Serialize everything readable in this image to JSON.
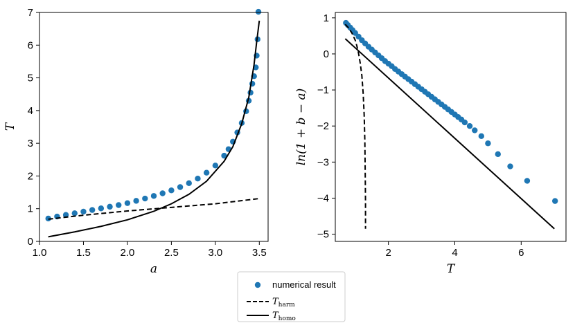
{
  "chart_data": [
    {
      "type": "scatter",
      "xlabel": "a",
      "ylabel": "T",
      "xlim": [
        1.0,
        3.6
      ],
      "ylim": [
        0,
        7
      ],
      "xticks": [
        1.0,
        1.5,
        2.0,
        2.5,
        3.0,
        3.5
      ],
      "xtick_labels": [
        "1.0",
        "1.5",
        "2.0",
        "2.5",
        "3.0",
        "3.5"
      ],
      "yticks": [
        0,
        1,
        2,
        3,
        4,
        5,
        6,
        7
      ],
      "ytick_labels": [
        "0",
        "1",
        "2",
        "3",
        "4",
        "5",
        "6",
        "7"
      ],
      "series": [
        {
          "name": "numerical result",
          "style": "scatter",
          "color": "#1f77b4",
          "points": [
            [
              1.1,
              0.7
            ],
            [
              1.2,
              0.76
            ],
            [
              1.3,
              0.81
            ],
            [
              1.4,
              0.86
            ],
            [
              1.5,
              0.91
            ],
            [
              1.6,
              0.96
            ],
            [
              1.7,
              1.01
            ],
            [
              1.8,
              1.06
            ],
            [
              1.9,
              1.11
            ],
            [
              2.0,
              1.17
            ],
            [
              2.1,
              1.24
            ],
            [
              2.2,
              1.31
            ],
            [
              2.3,
              1.39
            ],
            [
              2.4,
              1.47
            ],
            [
              2.5,
              1.56
            ],
            [
              2.6,
              1.66
            ],
            [
              2.7,
              1.78
            ],
            [
              2.8,
              1.92
            ],
            [
              2.9,
              2.1
            ],
            [
              3.0,
              2.32
            ],
            [
              3.1,
              2.62
            ],
            [
              3.15,
              2.82
            ],
            [
              3.2,
              3.05
            ],
            [
              3.25,
              3.33
            ],
            [
              3.3,
              3.62
            ],
            [
              3.35,
              3.98
            ],
            [
              3.38,
              4.3
            ],
            [
              3.4,
              4.55
            ],
            [
              3.42,
              4.82
            ],
            [
              3.44,
              5.05
            ],
            [
              3.46,
              5.32
            ],
            [
              3.47,
              5.68
            ],
            [
              3.48,
              6.18
            ],
            [
              3.49,
              7.02
            ]
          ]
        },
        {
          "name": "T_harm",
          "style": "dashed",
          "color": "#000000",
          "points": [
            [
              1.1,
              0.68
            ],
            [
              1.5,
              0.8
            ],
            [
              2.0,
              0.93
            ],
            [
              2.5,
              1.04
            ],
            [
              3.0,
              1.15
            ],
            [
              3.5,
              1.31
            ]
          ]
        },
        {
          "name": "T_homo",
          "style": "solid",
          "color": "#000000",
          "points": [
            [
              1.1,
              0.14
            ],
            [
              1.4,
              0.29
            ],
            [
              1.7,
              0.46
            ],
            [
              2.0,
              0.66
            ],
            [
              2.3,
              0.92
            ],
            [
              2.5,
              1.15
            ],
            [
              2.7,
              1.44
            ],
            [
              2.9,
              1.84
            ],
            [
              3.1,
              2.45
            ],
            [
              3.2,
              2.9
            ],
            [
              3.3,
              3.6
            ],
            [
              3.38,
              4.4
            ],
            [
              3.44,
              5.4
            ],
            [
              3.47,
              6.1
            ],
            [
              3.5,
              6.75
            ]
          ]
        }
      ]
    },
    {
      "type": "scatter",
      "xlabel": "T",
      "ylabel": "ln(1 + b − a)",
      "xlim": [
        0.4,
        7.35
      ],
      "ylim": [
        -5.2,
        1.15
      ],
      "xticks": [
        2,
        4,
        6
      ],
      "xtick_labels": [
        "2",
        "4",
        "6"
      ],
      "yticks": [
        1,
        0,
        -1,
        -2,
        -3,
        -4,
        -5
      ],
      "ytick_labels": [
        "1",
        "0",
        "−1",
        "−2",
        "−3",
        "−4",
        "−5"
      ],
      "series": [
        {
          "name": "numerical result",
          "style": "scatter",
          "color": "#1f77b4",
          "points": [
            [
              0.72,
              0.86
            ],
            [
              0.78,
              0.8
            ],
            [
              0.85,
              0.73
            ],
            [
              0.92,
              0.66
            ],
            [
              1.0,
              0.58
            ],
            [
              1.1,
              0.48
            ],
            [
              1.2,
              0.38
            ],
            [
              1.3,
              0.29
            ],
            [
              1.4,
              0.2
            ],
            [
              1.5,
              0.12
            ],
            [
              1.6,
              0.04
            ],
            [
              1.7,
              -0.04
            ],
            [
              1.8,
              -0.12
            ],
            [
              1.9,
              -0.2
            ],
            [
              2.0,
              -0.27
            ],
            [
              2.1,
              -0.34
            ],
            [
              2.2,
              -0.42
            ],
            [
              2.3,
              -0.49
            ],
            [
              2.4,
              -0.56
            ],
            [
              2.5,
              -0.63
            ],
            [
              2.6,
              -0.7
            ],
            [
              2.7,
              -0.77
            ],
            [
              2.8,
              -0.84
            ],
            [
              2.9,
              -0.91
            ],
            [
              3.0,
              -0.98
            ],
            [
              3.1,
              -1.05
            ],
            [
              3.2,
              -1.12
            ],
            [
              3.3,
              -1.19
            ],
            [
              3.4,
              -1.26
            ],
            [
              3.5,
              -1.33
            ],
            [
              3.6,
              -1.4
            ],
            [
              3.7,
              -1.47
            ],
            [
              3.8,
              -1.54
            ],
            [
              3.9,
              -1.61
            ],
            [
              4.0,
              -1.68
            ],
            [
              4.1,
              -1.75
            ],
            [
              4.2,
              -1.82
            ],
            [
              4.3,
              -1.9
            ],
            [
              4.45,
              -2.0
            ],
            [
              4.6,
              -2.12
            ],
            [
              4.8,
              -2.28
            ],
            [
              5.0,
              -2.48
            ],
            [
              5.3,
              -2.78
            ],
            [
              5.67,
              -3.12
            ],
            [
              6.18,
              -3.52
            ],
            [
              7.02,
              -4.08
            ]
          ]
        },
        {
          "name": "T_harm",
          "style": "dashed",
          "color": "#000000",
          "points": [
            [
              0.7,
              0.82
            ],
            [
              0.8,
              0.72
            ],
            [
              0.9,
              0.58
            ],
            [
              1.0,
              0.38
            ],
            [
              1.05,
              0.22
            ],
            [
              1.1,
              0.02
            ],
            [
              1.15,
              -0.25
            ],
            [
              1.2,
              -0.6
            ],
            [
              1.24,
              -1.1
            ],
            [
              1.27,
              -1.7
            ],
            [
              1.29,
              -2.4
            ],
            [
              1.3,
              -3.2
            ],
            [
              1.31,
              -4.1
            ],
            [
              1.31,
              -4.85
            ]
          ]
        },
        {
          "name": "T_homo",
          "style": "solid",
          "color": "#000000",
          "points": [
            [
              0.7,
              0.42
            ],
            [
              7.0,
              -4.85
            ]
          ]
        }
      ]
    }
  ],
  "legend": {
    "entries": [
      {
        "style": "scatter",
        "label": "numerical result",
        "math": false,
        "base": "",
        "sub": ""
      },
      {
        "style": "dashed",
        "label": "T_harm",
        "math": true,
        "base": "T",
        "sub": "harm"
      },
      {
        "style": "solid",
        "label": "T_homo",
        "math": true,
        "base": "T",
        "sub": "homo"
      }
    ]
  }
}
